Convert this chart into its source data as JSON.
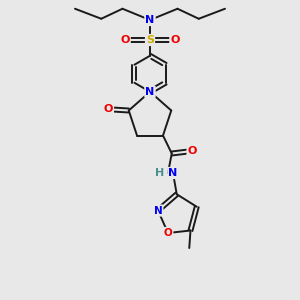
{
  "background_color": "#e8e8e8",
  "bond_color": "#1a1a1a",
  "atom_colors": {
    "N": "#0000ee",
    "O": "#ee0000",
    "S": "#ccaa00",
    "C": "#1a1a1a",
    "H": "#4a9090"
  },
  "figsize": [
    3.0,
    3.0
  ],
  "dpi": 100,
  "xlim": [
    0,
    10
  ],
  "ylim": [
    0,
    12
  ]
}
